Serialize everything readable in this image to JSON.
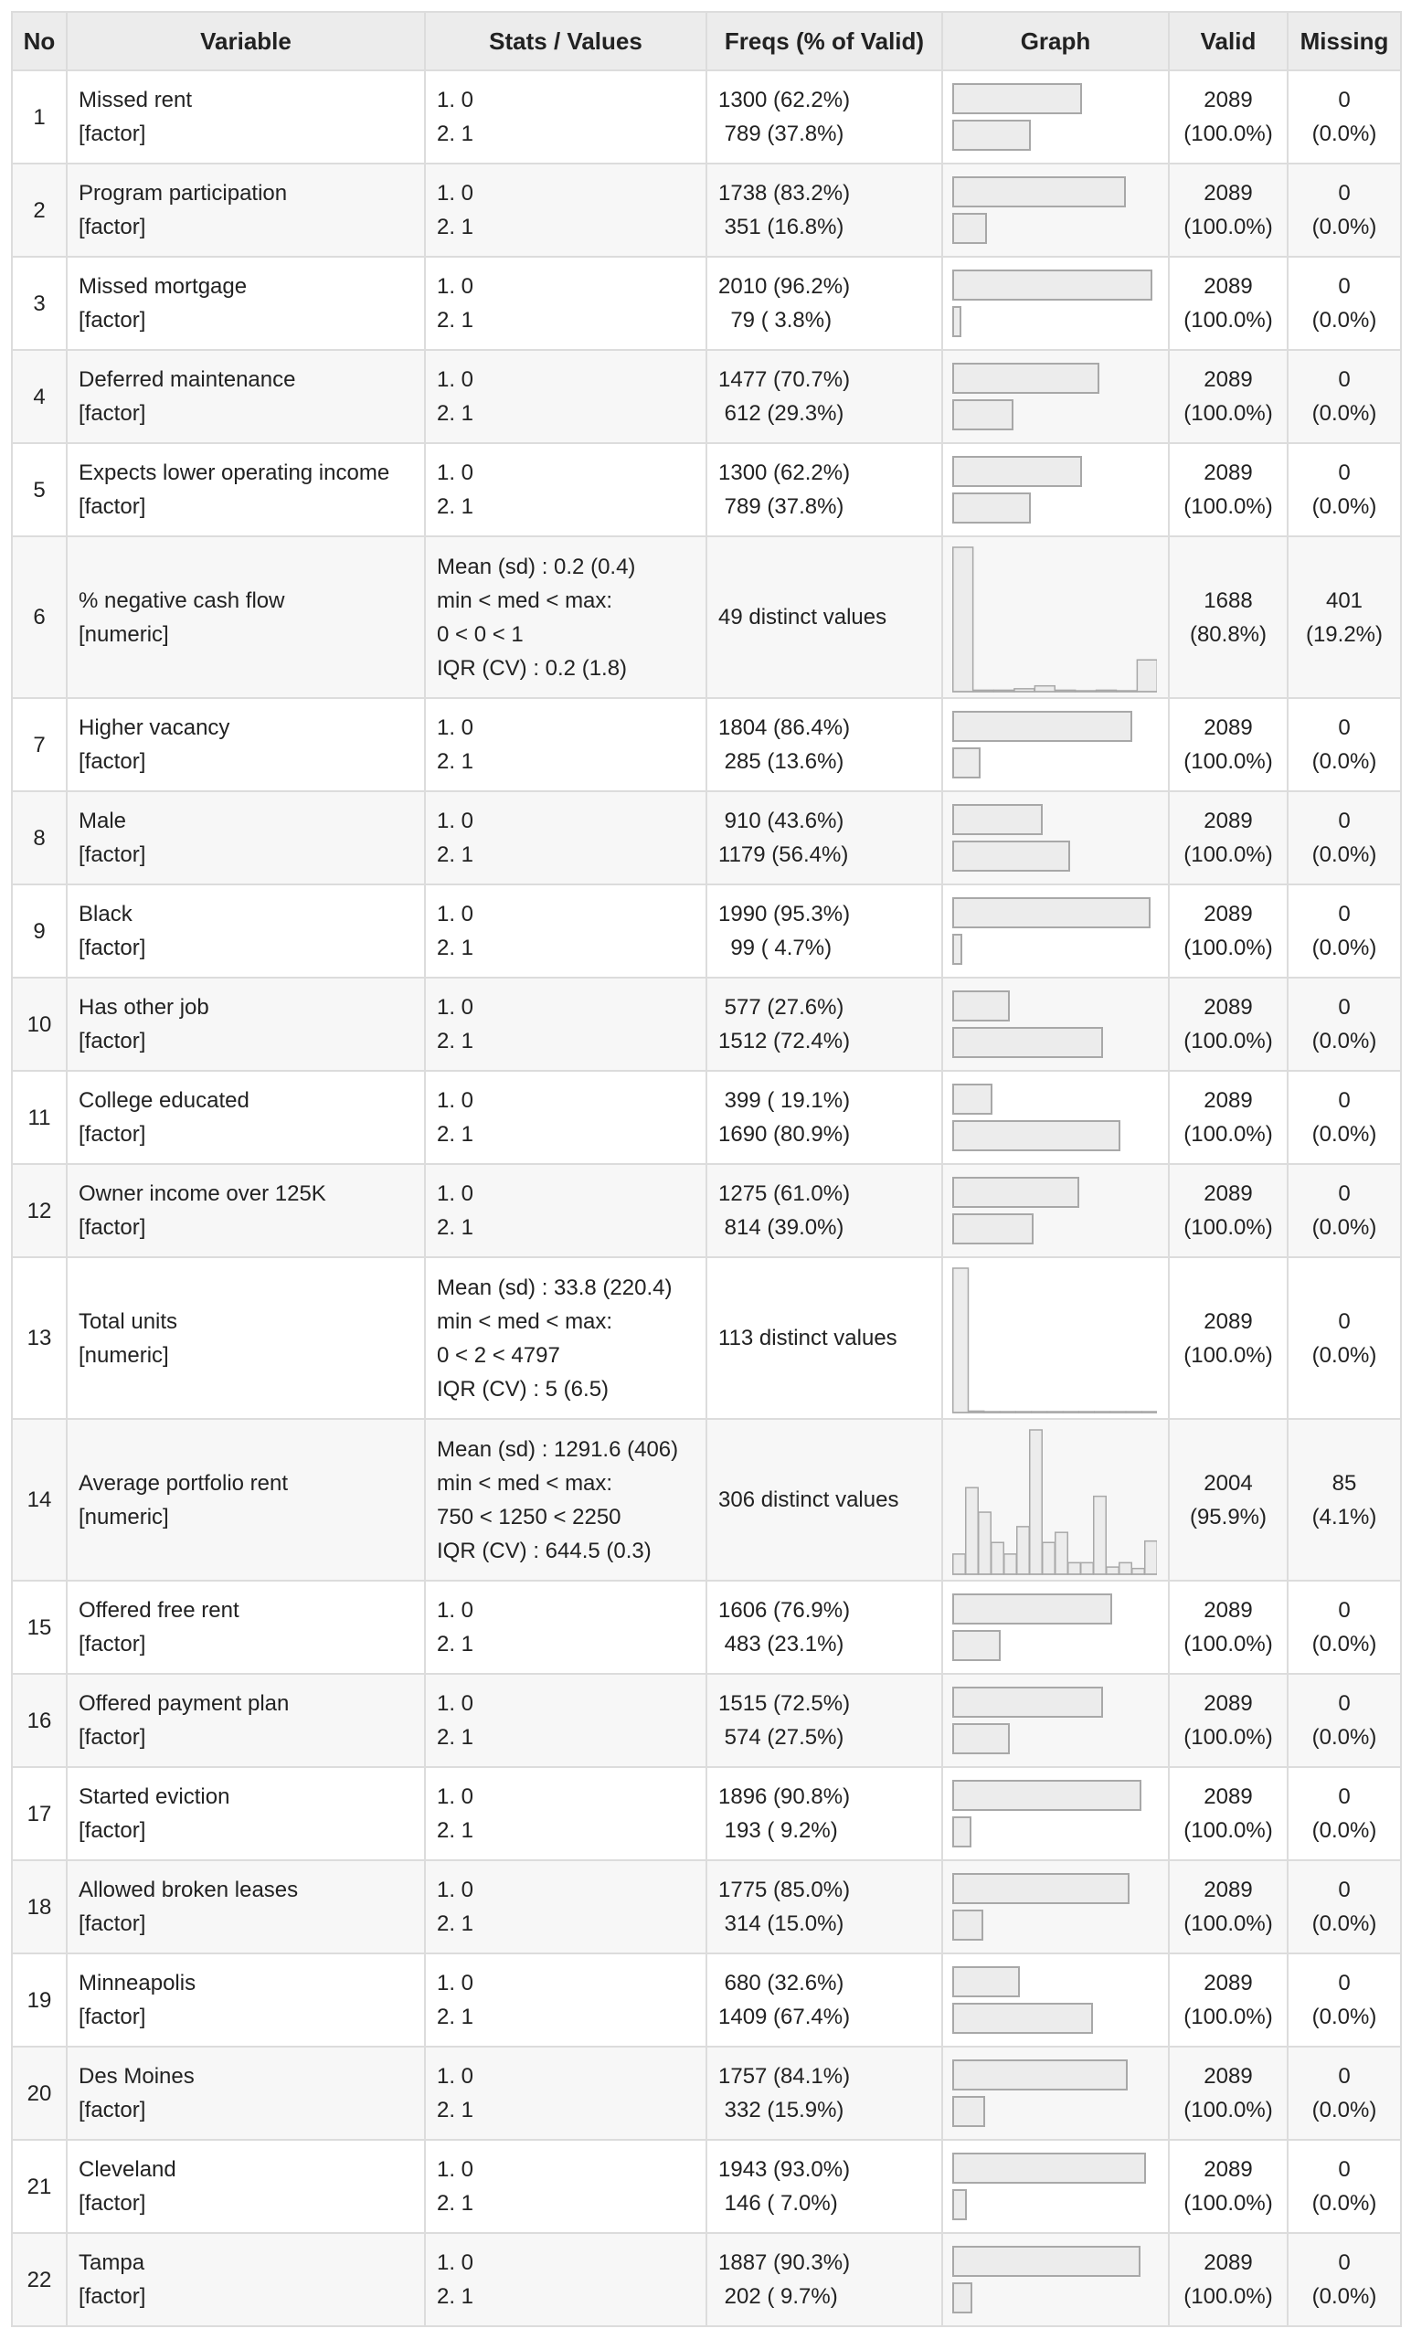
{
  "headers": [
    "No",
    "Variable",
    "Stats / Values",
    "Freqs (% of Valid)",
    "Graph",
    "Valid",
    "Missing"
  ],
  "rows": [
    {
      "no": "1",
      "name": "Missed rent",
      "type": "[factor]",
      "kind": "factor",
      "stats": [
        "1. 0",
        "2. 1"
      ],
      "freqs": [
        "1300 (62.2%)",
        " 789 (37.8%)"
      ],
      "pcts": [
        62.2,
        37.8
      ],
      "valid": [
        "2089",
        "(100.0%)"
      ],
      "missing": [
        "0",
        "(0.0%)"
      ]
    },
    {
      "no": "2",
      "name": "Program participation",
      "type": "[factor]",
      "kind": "factor",
      "stats": [
        "1. 0",
        "2. 1"
      ],
      "freqs": [
        "1738 (83.2%)",
        " 351 (16.8%)"
      ],
      "pcts": [
        83.2,
        16.8
      ],
      "valid": [
        "2089",
        "(100.0%)"
      ],
      "missing": [
        "0",
        "(0.0%)"
      ]
    },
    {
      "no": "3",
      "name": "Missed mortgage",
      "type": "[factor]",
      "kind": "factor",
      "stats": [
        "1. 0",
        "2. 1"
      ],
      "freqs": [
        "2010 (96.2%)",
        "  79 ( 3.8%)"
      ],
      "pcts": [
        96.2,
        3.8
      ],
      "valid": [
        "2089",
        "(100.0%)"
      ],
      "missing": [
        "0",
        "(0.0%)"
      ]
    },
    {
      "no": "4",
      "name": "Deferred maintenance",
      "type": "[factor]",
      "kind": "factor",
      "stats": [
        "1. 0",
        "2. 1"
      ],
      "freqs": [
        "1477 (70.7%)",
        " 612 (29.3%)"
      ],
      "pcts": [
        70.7,
        29.3
      ],
      "valid": [
        "2089",
        "(100.0%)"
      ],
      "missing": [
        "0",
        "(0.0%)"
      ]
    },
    {
      "no": "5",
      "name": "Expects lower operating income",
      "type": "[factor]",
      "kind": "factor",
      "stats": [
        "1. 0",
        "2. 1"
      ],
      "freqs": [
        "1300 (62.2%)",
        " 789 (37.8%)"
      ],
      "pcts": [
        62.2,
        37.8
      ],
      "valid": [
        "2089",
        "(100.0%)"
      ],
      "missing": [
        "0",
        "(0.0%)"
      ]
    },
    {
      "no": "6",
      "name": "% negative cash flow",
      "type": "[numeric]",
      "kind": "numeric",
      "stats": [
        "Mean (sd) : 0.2 (0.4)",
        "min < med < max:",
        "0 < 0 < 1",
        "IQR (CV) : 0.2 (1.8)"
      ],
      "freqs": [
        "49 distinct values"
      ],
      "hist": [
        100,
        1,
        1,
        2,
        4,
        1,
        0,
        1,
        0,
        22
      ],
      "valid": [
        "1688",
        "(80.8%)"
      ],
      "missing": [
        "401",
        "(19.2%)"
      ]
    },
    {
      "no": "7",
      "name": "Higher vacancy",
      "type": "[factor]",
      "kind": "factor",
      "stats": [
        "1. 0",
        "2. 1"
      ],
      "freqs": [
        "1804 (86.4%)",
        " 285 (13.6%)"
      ],
      "pcts": [
        86.4,
        13.6
      ],
      "valid": [
        "2089",
        "(100.0%)"
      ],
      "missing": [
        "0",
        "(0.0%)"
      ]
    },
    {
      "no": "8",
      "name": "Male",
      "type": "[factor]",
      "kind": "factor",
      "stats": [
        "1. 0",
        "2. 1"
      ],
      "freqs": [
        " 910 (43.6%)",
        "1179 (56.4%)"
      ],
      "pcts": [
        43.6,
        56.4
      ],
      "valid": [
        "2089",
        "(100.0%)"
      ],
      "missing": [
        "0",
        "(0.0%)"
      ]
    },
    {
      "no": "9",
      "name": "Black",
      "type": "[factor]",
      "kind": "factor",
      "stats": [
        "1. 0",
        "2. 1"
      ],
      "freqs": [
        "1990 (95.3%)",
        "  99 ( 4.7%)"
      ],
      "pcts": [
        95.3,
        4.7
      ],
      "valid": [
        "2089",
        "(100.0%)"
      ],
      "missing": [
        "0",
        "(0.0%)"
      ]
    },
    {
      "no": "10",
      "name": "Has other job",
      "type": "[factor]",
      "kind": "factor",
      "stats": [
        "1. 0",
        "2. 1"
      ],
      "freqs": [
        " 577 (27.6%)",
        "1512 (72.4%)"
      ],
      "pcts": [
        27.6,
        72.4
      ],
      "valid": [
        "2089",
        "(100.0%)"
      ],
      "missing": [
        "0",
        "(0.0%)"
      ]
    },
    {
      "no": "11",
      "name": "College educated",
      "type": "[factor]",
      "kind": "factor",
      "stats": [
        "1. 0",
        "2. 1"
      ],
      "freqs": [
        " 399 ( 19.1%)",
        "1690 (80.9%)"
      ],
      "pcts": [
        19.1,
        80.9
      ],
      "valid": [
        "2089",
        "(100.0%)"
      ],
      "missing": [
        "0",
        "(0.0%)"
      ]
    },
    {
      "no": "12",
      "name": "Owner income over 125K",
      "type": "[factor]",
      "kind": "factor",
      "stats": [
        "1. 0",
        "2. 1"
      ],
      "freqs": [
        "1275 (61.0%)",
        " 814 (39.0%)"
      ],
      "pcts": [
        61.0,
        39.0
      ],
      "valid": [
        "2089",
        "(100.0%)"
      ],
      "missing": [
        "0",
        "(0.0%)"
      ]
    },
    {
      "no": "13",
      "name": "Total units",
      "type": "[numeric]",
      "kind": "numeric",
      "stats": [
        "Mean (sd) : 33.8 (220.4)",
        "min < med < max:",
        "0 < 2 < 4797",
        "IQR (CV) : 5 (6.5)"
      ],
      "freqs": [
        "113 distinct values"
      ],
      "hist": [
        100,
        1,
        0,
        0,
        0,
        0,
        0,
        0,
        0,
        0,
        0,
        0,
        0
      ],
      "valid": [
        "2089",
        "(100.0%)"
      ],
      "missing": [
        "0",
        "(0.0%)"
      ]
    },
    {
      "no": "14",
      "name": "Average portfolio rent",
      "type": "[numeric]",
      "kind": "numeric",
      "stats": [
        "Mean (sd) : 1291.6 (406)",
        "min < med < max:",
        "750 < 1250 < 2250",
        "IQR (CV) : 644.5 (0.3)"
      ],
      "freqs": [
        "306 distinct values"
      ],
      "hist": [
        14,
        60,
        43,
        22,
        14,
        33,
        100,
        22,
        29,
        8,
        8,
        54,
        5,
        8,
        4,
        23
      ],
      "valid": [
        "2004",
        "(95.9%)"
      ],
      "missing": [
        "85",
        "(4.1%)"
      ]
    },
    {
      "no": "15",
      "name": "Offered free rent",
      "type": "[factor]",
      "kind": "factor",
      "stats": [
        "1. 0",
        "2. 1"
      ],
      "freqs": [
        "1606 (76.9%)",
        " 483 (23.1%)"
      ],
      "pcts": [
        76.9,
        23.1
      ],
      "valid": [
        "2089",
        "(100.0%)"
      ],
      "missing": [
        "0",
        "(0.0%)"
      ]
    },
    {
      "no": "16",
      "name": "Offered payment plan",
      "type": "[factor]",
      "kind": "factor",
      "stats": [
        "1. 0",
        "2. 1"
      ],
      "freqs": [
        "1515 (72.5%)",
        " 574 (27.5%)"
      ],
      "pcts": [
        72.5,
        27.5
      ],
      "valid": [
        "2089",
        "(100.0%)"
      ],
      "missing": [
        "0",
        "(0.0%)"
      ]
    },
    {
      "no": "17",
      "name": "Started eviction",
      "type": "[factor]",
      "kind": "factor",
      "stats": [
        "1. 0",
        "2. 1"
      ],
      "freqs": [
        "1896 (90.8%)",
        " 193 ( 9.2%)"
      ],
      "pcts": [
        90.8,
        9.2
      ],
      "valid": [
        "2089",
        "(100.0%)"
      ],
      "missing": [
        "0",
        "(0.0%)"
      ]
    },
    {
      "no": "18",
      "name": "Allowed broken leases",
      "type": "[factor]",
      "kind": "factor",
      "stats": [
        "1. 0",
        "2. 1"
      ],
      "freqs": [
        "1775 (85.0%)",
        " 314 (15.0%)"
      ],
      "pcts": [
        85.0,
        15.0
      ],
      "valid": [
        "2089",
        "(100.0%)"
      ],
      "missing": [
        "0",
        "(0.0%)"
      ]
    },
    {
      "no": "19",
      "name": "Minneapolis",
      "type": "[factor]",
      "kind": "factor",
      "stats": [
        "1. 0",
        "2. 1"
      ],
      "freqs": [
        " 680 (32.6%)",
        "1409 (67.4%)"
      ],
      "pcts": [
        32.6,
        67.4
      ],
      "valid": [
        "2089",
        "(100.0%)"
      ],
      "missing": [
        "0",
        "(0.0%)"
      ]
    },
    {
      "no": "20",
      "name": "Des Moines",
      "type": "[factor]",
      "kind": "factor",
      "stats": [
        "1. 0",
        "2. 1"
      ],
      "freqs": [
        "1757 (84.1%)",
        " 332 (15.9%)"
      ],
      "pcts": [
        84.1,
        15.9
      ],
      "valid": [
        "2089",
        "(100.0%)"
      ],
      "missing": [
        "0",
        "(0.0%)"
      ]
    },
    {
      "no": "21",
      "name": "Cleveland",
      "type": "[factor]",
      "kind": "factor",
      "stats": [
        "1. 0",
        "2. 1"
      ],
      "freqs": [
        "1943 (93.0%)",
        " 146 ( 7.0%)"
      ],
      "pcts": [
        93.0,
        7.0
      ],
      "valid": [
        "2089",
        "(100.0%)"
      ],
      "missing": [
        "0",
        "(0.0%)"
      ]
    },
    {
      "no": "22",
      "name": "Tampa",
      "type": "[factor]",
      "kind": "factor",
      "stats": [
        "1. 0",
        "2. 1"
      ],
      "freqs": [
        "1887 (90.3%)",
        " 202 ( 9.7%)"
      ],
      "pcts": [
        90.3,
        9.7
      ],
      "valid": [
        "2089",
        "(100.0%)"
      ],
      "missing": [
        "0",
        "(0.0%)"
      ]
    }
  ]
}
